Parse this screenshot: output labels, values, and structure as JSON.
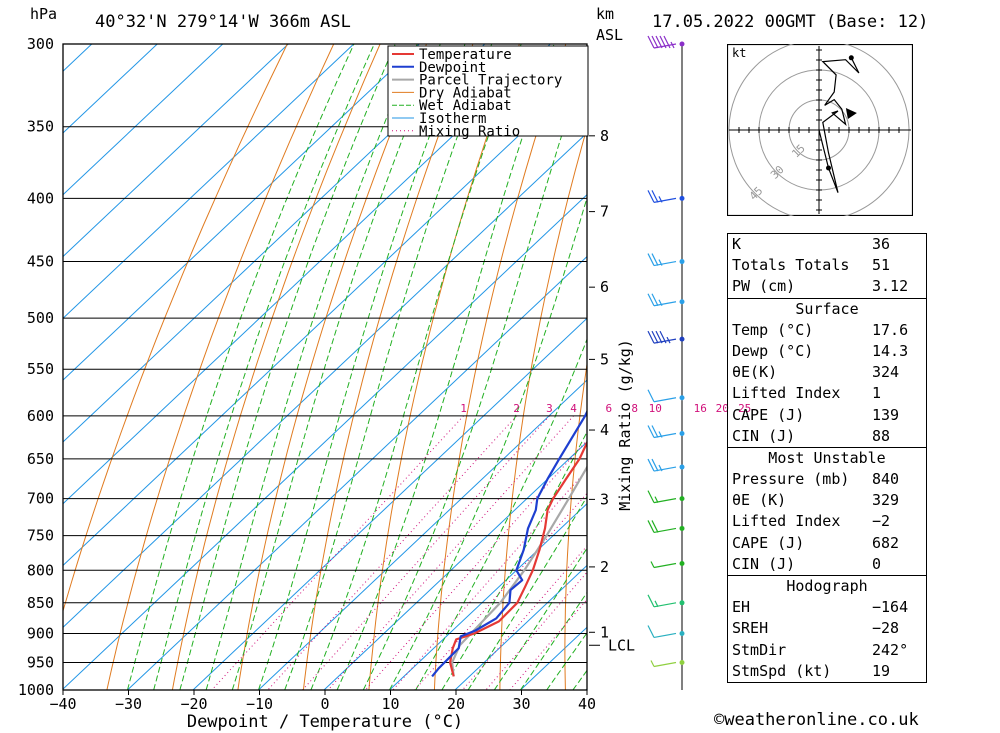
{
  "header": {
    "pressure_unit": "hPa",
    "location": "40°32'N 279°14'W 366m ASL",
    "km_label": "km",
    "asl_label": "ASL",
    "datetime": "17.05.2022 00GMT (Base: 12)"
  },
  "chart_data": {
    "type": "skew-T log-P",
    "xlabel": "Dewpoint / Temperature (°C)",
    "ylabel": "hPa",
    "mixing_ratio_label": "Mixing Ratio (g/kg)",
    "x_ticks": [
      "−40",
      "−30",
      "−20",
      "−10",
      "0",
      "10",
      "20",
      "30",
      "40"
    ],
    "x_tick_values": [
      -40,
      -30,
      -20,
      -10,
      0,
      10,
      20,
      30,
      40
    ],
    "pressure_levels": [
      300,
      350,
      400,
      450,
      500,
      550,
      600,
      650,
      700,
      750,
      800,
      850,
      900,
      950,
      1000
    ],
    "km_ticks": [
      {
        "km": "1",
        "p": 898
      },
      {
        "km": "2",
        "p": 795
      },
      {
        "km": "3",
        "p": 701
      },
      {
        "km": "4",
        "p": 616
      },
      {
        "km": "5",
        "p": 540
      },
      {
        "km": "6",
        "p": 472
      },
      {
        "km": "7",
        "p": 410
      },
      {
        "km": "8",
        "p": 356
      }
    ],
    "lcl": {
      "label": "LCL",
      "p": 920
    },
    "mixing_ratios": [
      "1",
      "2",
      "3",
      "4",
      "6",
      "8",
      "10",
      "16",
      "20",
      "25"
    ],
    "legend": [
      "Temperature",
      "Dewpoint",
      "Parcel Trajectory",
      "Dry Adiabat",
      "Wet Adiabat",
      "Isotherm",
      "Mixing Ratio"
    ],
    "colors": {
      "temperature": "#e53935",
      "dewpoint": "#1e3fd0",
      "parcel": "#a8a8a8",
      "dry_adiabat": "#e07b20",
      "wet_adiabat": "#22b022",
      "isotherm": "#2296e6",
      "mixing_ratio": "#d0107a"
    },
    "temperature": [
      [
        975,
        17.6
      ],
      [
        950,
        14.8
      ],
      [
        925,
        12.9
      ],
      [
        910,
        12
      ],
      [
        900,
        13.8
      ],
      [
        880,
        15.6
      ],
      [
        850,
        15.4
      ],
      [
        825,
        14
      ],
      [
        800,
        12.5
      ],
      [
        770,
        10.2
      ],
      [
        740,
        7.6
      ],
      [
        715,
        5
      ],
      [
        700,
        4
      ],
      [
        675,
        2.8
      ],
      [
        650,
        1.6
      ],
      [
        600,
        -2.3
      ],
      [
        550,
        -5.9
      ],
      [
        525,
        -7.5
      ],
      [
        500,
        -10.4
      ],
      [
        475,
        -13.6
      ],
      [
        450,
        -17.3
      ],
      [
        425,
        -21.2
      ],
      [
        400,
        -25
      ],
      [
        375,
        -28.8
      ],
      [
        350,
        -33
      ],
      [
        325,
        -37.5
      ],
      [
        300,
        -42
      ]
    ],
    "dewpoint": [
      [
        975,
        14.3
      ],
      [
        960,
        14
      ],
      [
        925,
        13.8
      ],
      [
        905,
        12.2
      ],
      [
        895,
        13.5
      ],
      [
        875,
        14.7
      ],
      [
        850,
        14.2
      ],
      [
        830,
        12.3
      ],
      [
        815,
        12.5
      ],
      [
        800,
        10
      ],
      [
        770,
        7.8
      ],
      [
        740,
        5
      ],
      [
        715,
        3.2
      ],
      [
        700,
        1.6
      ],
      [
        675,
        0
      ],
      [
        650,
        -1.5
      ],
      [
        600,
        -4.5
      ],
      [
        575,
        -6.5
      ],
      [
        550,
        -7.8
      ],
      [
        530,
        -9.2
      ],
      [
        510,
        -10
      ],
      [
        490,
        -12.2
      ],
      [
        470,
        -14.9
      ],
      [
        445,
        -17.2
      ],
      [
        425,
        -21.5
      ],
      [
        400,
        -26
      ],
      [
        390,
        -28
      ],
      [
        375,
        -30.5
      ],
      [
        350,
        -35.5
      ],
      [
        325,
        -40
      ],
      [
        300,
        -45
      ]
    ],
    "parcel": [
      [
        975,
        17.6
      ],
      [
        950,
        15.1
      ],
      [
        920,
        13.5
      ],
      [
        900,
        13.3
      ],
      [
        850,
        12.8
      ],
      [
        800,
        11.2
      ],
      [
        750,
        9
      ],
      [
        700,
        6.4
      ],
      [
        650,
        3.5
      ],
      [
        600,
        0.3
      ],
      [
        550,
        -3.5
      ],
      [
        500,
        -7.8
      ],
      [
        450,
        -13
      ],
      [
        400,
        -19.5
      ],
      [
        350,
        -27.5
      ],
      [
        300,
        -37.3
      ]
    ],
    "wind_barbs": [
      {
        "p": 300,
        "speed": 55,
        "color": "#8b2fc9"
      },
      {
        "p": 400,
        "speed": 25,
        "color": "#2050e0"
      },
      {
        "p": 450,
        "speed": 25,
        "color": "#2aa0e8"
      },
      {
        "p": 485,
        "speed": 25,
        "color": "#2aa0e8"
      },
      {
        "p": 520,
        "speed": 45,
        "color": "#2040c0"
      },
      {
        "p": 580,
        "speed": 10,
        "color": "#2aa0e8"
      },
      {
        "p": 620,
        "speed": 25,
        "color": "#2aa0e8"
      },
      {
        "p": 660,
        "speed": 25,
        "color": "#2aa0e8"
      },
      {
        "p": 700,
        "speed": 15,
        "color": "#22b022"
      },
      {
        "p": 740,
        "speed": 20,
        "color": "#22b022"
      },
      {
        "p": 790,
        "speed": 5,
        "color": "#22b022"
      },
      {
        "p": 850,
        "speed": 15,
        "color": "#22c070"
      },
      {
        "p": 900,
        "speed": 10,
        "color": "#2ab0c0"
      },
      {
        "p": 950,
        "speed": 5,
        "color": "#90d040"
      }
    ],
    "hodograph": {
      "unit": "kt",
      "ring_labels": [
        "15",
        "30",
        "45"
      ],
      "trace": [
        [
          0,
          0
        ],
        [
          5,
          -20
        ],
        [
          10,
          -33
        ],
        [
          5,
          -12
        ],
        [
          2,
          4
        ],
        [
          10,
          10
        ],
        [
          7,
          9
        ],
        [
          14,
          3
        ],
        [
          12,
          11
        ],
        [
          8,
          16
        ],
        [
          3,
          13
        ],
        [
          8,
          20
        ],
        [
          9,
          29
        ],
        [
          2,
          36
        ],
        [
          14,
          37
        ],
        [
          21,
          30
        ],
        [
          17,
          38
        ]
      ],
      "storm_dir_deg": 242,
      "storm_speed_kt": 19
    }
  },
  "indices": {
    "rows": [
      {
        "k": "K",
        "v": "36"
      },
      {
        "k": "Totals Totals",
        "v": "51"
      },
      {
        "k": "PW (cm)",
        "v": "3.12"
      }
    ]
  },
  "surface": {
    "title": "Surface",
    "rows": [
      {
        "k": "Temp (°C)",
        "v": "17.6"
      },
      {
        "k": "Dewp (°C)",
        "v": "14.3"
      },
      {
        "k": "θE(K)",
        "v": "324"
      },
      {
        "k": "Lifted Index",
        "v": "1"
      },
      {
        "k": "CAPE (J)",
        "v": "139"
      },
      {
        "k": "CIN (J)",
        "v": "88"
      }
    ]
  },
  "most_unstable": {
    "title": "Most Unstable",
    "rows": [
      {
        "k": "Pressure (mb)",
        "v": "840"
      },
      {
        "k": "θE (K)",
        "v": "329"
      },
      {
        "k": "Lifted Index",
        "v": "−2"
      },
      {
        "k": "CAPE (J)",
        "v": "682"
      },
      {
        "k": "CIN (J)",
        "v": "0"
      }
    ]
  },
  "hodograph_table": {
    "title": "Hodograph",
    "rows": [
      {
        "k": "EH",
        "v": "−164"
      },
      {
        "k": "SREH",
        "v": "−28"
      },
      {
        "k": "StmDir",
        "v": "242°"
      },
      {
        "k": "StmSpd (kt)",
        "v": "19"
      }
    ]
  },
  "footer": "©weatheronline.co.uk"
}
